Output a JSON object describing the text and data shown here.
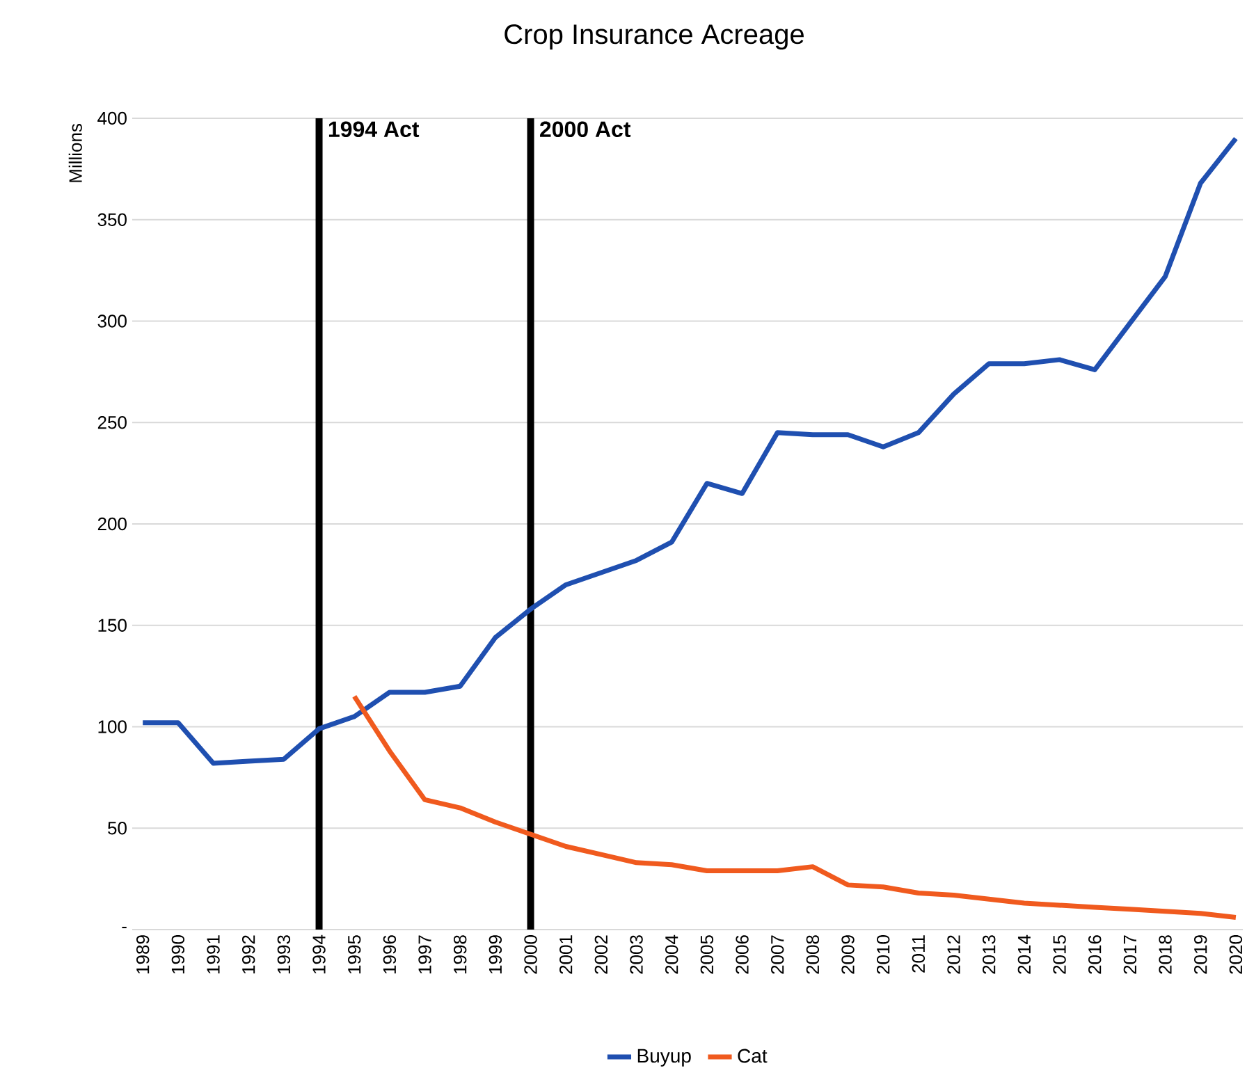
{
  "chart_data": {
    "type": "line",
    "title": "Crop Insurance Acreage",
    "ylabel": "Millions",
    "x": [
      1989,
      1990,
      1991,
      1992,
      1993,
      1994,
      1995,
      1996,
      1997,
      1998,
      1999,
      2000,
      2001,
      2002,
      2003,
      2004,
      2005,
      2006,
      2007,
      2008,
      2009,
      2010,
      2011,
      2012,
      2013,
      2014,
      2015,
      2016,
      2017,
      2018,
      2019,
      2020
    ],
    "series": [
      {
        "name": "Buyup",
        "color": "#1f4fb0",
        "values": [
          102,
          102,
          82,
          83,
          84,
          99,
          105,
          117,
          117,
          120,
          144,
          158,
          170,
          176,
          182,
          191,
          220,
          215,
          245,
          244,
          244,
          238,
          245,
          264,
          279,
          279,
          281,
          276,
          299,
          322,
          368,
          390
        ]
      },
      {
        "name": "Cat",
        "color": "#f05a1e",
        "values": [
          null,
          null,
          null,
          null,
          null,
          null,
          115,
          88,
          64,
          60,
          53,
          47,
          41,
          37,
          33,
          32,
          29,
          29,
          29,
          31,
          22,
          21,
          18,
          17,
          15,
          13,
          12,
          11,
          10,
          9,
          8,
          6
        ]
      }
    ],
    "xlim": [
      1988.7,
      2020.2
    ],
    "xticks": [
      1989,
      1990,
      1991,
      1992,
      1993,
      1994,
      1995,
      1996,
      1997,
      1998,
      1999,
      2000,
      2001,
      2002,
      2003,
      2004,
      2005,
      2006,
      2007,
      2008,
      2009,
      2010,
      2011,
      2012,
      2013,
      2014,
      2015,
      2016,
      2017,
      2018,
      2019,
      2020
    ],
    "ylim": [
      0,
      400
    ],
    "yticks": [
      {
        "value": 0,
        "label": "-"
      },
      50,
      100,
      150,
      200,
      250,
      300,
      350,
      400
    ],
    "ref_lines": [
      {
        "axis": "x",
        "value": 1994,
        "label": "1994 Act",
        "color": "#000000"
      },
      {
        "axis": "x",
        "value": 2000,
        "label": "2000 Act",
        "color": "#000000"
      }
    ],
    "grid": "y",
    "legend": "bottom",
    "marker": "none",
    "line_style": "solid"
  }
}
